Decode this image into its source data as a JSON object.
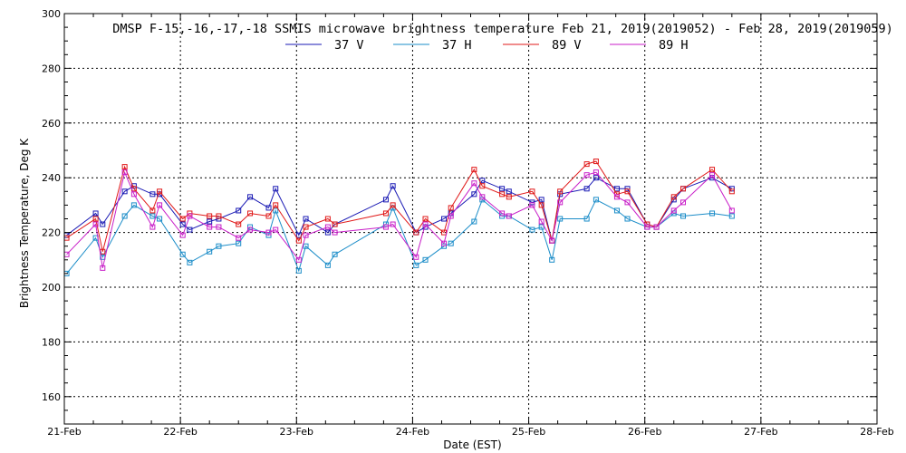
{
  "chart_data": {
    "type": "line",
    "title": "DMSP F-15,-16,-17,-18 SSMIS microwave brightness temperature Feb 21, 2019(2019052) - Feb 28, 2019(2019059)",
    "xlabel": "Date (EST)",
    "ylabel": "Brightness Temperature, Deg K",
    "xlim": [
      0,
      7
    ],
    "ylim": [
      150,
      300
    ],
    "x_ticks": [
      0,
      1,
      2,
      3,
      4,
      5,
      6,
      7
    ],
    "x_tick_labels": [
      "21-Feb",
      "22-Feb",
      "23-Feb",
      "24-Feb",
      "25-Feb",
      "26-Feb",
      "27-Feb",
      "28-Feb"
    ],
    "y_ticks": [
      160,
      180,
      200,
      220,
      240,
      260,
      280,
      300
    ],
    "y_tick_labels": [
      "160",
      "180",
      "200",
      "220",
      "240",
      "260",
      "280",
      "300"
    ],
    "grid": true,
    "legend_position": "top-center",
    "series": [
      {
        "name": "37 V",
        "color": "#1a1ab4",
        "x": [
          0.02,
          0.27,
          0.33,
          0.52,
          0.6,
          0.76,
          0.82,
          1.02,
          1.08,
          1.25,
          1.33,
          1.5,
          1.6,
          1.76,
          1.82,
          2.02,
          2.08,
          2.27,
          2.33,
          2.77,
          2.83,
          3.03,
          3.11,
          3.27,
          3.33,
          3.53,
          3.6,
          3.77,
          3.83,
          4.03,
          4.11,
          4.2,
          4.27,
          4.5,
          4.58,
          4.76,
          4.85,
          5.02,
          5.1,
          5.25,
          5.33,
          5.58,
          5.75
        ],
        "y": [
          219,
          227,
          223,
          235,
          237,
          234,
          234,
          223,
          221,
          224,
          225,
          228,
          233,
          229,
          236,
          219,
          225,
          220,
          223,
          232,
          237,
          220,
          222,
          225,
          227,
          234,
          239,
          236,
          235,
          231,
          232,
          217,
          234,
          236,
          240,
          236,
          236,
          223,
          222,
          232,
          236,
          240,
          236
        ]
      },
      {
        "name": "37 H",
        "color": "#1a8cc8",
        "x": [
          0.02,
          0.27,
          0.33,
          0.52,
          0.6,
          0.76,
          0.82,
          1.02,
          1.08,
          1.25,
          1.33,
          1.5,
          1.6,
          1.76,
          1.82,
          2.02,
          2.08,
          2.27,
          2.33,
          2.77,
          2.83,
          3.03,
          3.11,
          3.27,
          3.33,
          3.53,
          3.6,
          3.77,
          3.83,
          4.03,
          4.11,
          4.2,
          4.27,
          4.5,
          4.58,
          4.76,
          4.85,
          5.02,
          5.1,
          5.25,
          5.33,
          5.58,
          5.75
        ],
        "y": [
          205,
          218,
          211,
          226,
          230,
          226,
          225,
          212,
          209,
          213,
          215,
          216,
          222,
          219,
          228,
          206,
          215,
          208,
          212,
          223,
          229,
          208,
          210,
          215,
          216,
          224,
          232,
          226,
          226,
          221,
          222,
          210,
          225,
          225,
          232,
          228,
          225,
          222,
          222,
          227,
          226,
          227,
          226
        ]
      },
      {
        "name": "89 V",
        "color": "#e01818",
        "x": [
          0.02,
          0.27,
          0.33,
          0.52,
          0.6,
          0.76,
          0.82,
          1.02,
          1.08,
          1.25,
          1.33,
          1.5,
          1.6,
          1.76,
          1.82,
          2.02,
          2.08,
          2.27,
          2.33,
          2.77,
          2.83,
          3.03,
          3.11,
          3.27,
          3.33,
          3.53,
          3.6,
          3.77,
          3.83,
          4.03,
          4.11,
          4.2,
          4.27,
          4.5,
          4.58,
          4.76,
          4.85,
          5.02,
          5.1,
          5.25,
          5.33,
          5.58,
          5.75
        ],
        "y": [
          218,
          225,
          213,
          244,
          236,
          228,
          235,
          225,
          227,
          226,
          226,
          223,
          227,
          226,
          230,
          217,
          222,
          225,
          223,
          227,
          230,
          220,
          225,
          220,
          229,
          243,
          237,
          234,
          233,
          235,
          230,
          217,
          235,
          245,
          246,
          234,
          235,
          223,
          222,
          233,
          236,
          243,
          235
        ]
      },
      {
        "name": "89 H",
        "color": "#c81ec8",
        "x": [
          0.02,
          0.27,
          0.33,
          0.52,
          0.6,
          0.76,
          0.82,
          1.02,
          1.08,
          1.25,
          1.33,
          1.5,
          1.6,
          1.76,
          1.82,
          2.02,
          2.08,
          2.27,
          2.33,
          2.77,
          2.83,
          3.03,
          3.11,
          3.27,
          3.33,
          3.53,
          3.6,
          3.77,
          3.83,
          4.03,
          4.11,
          4.2,
          4.27,
          4.5,
          4.58,
          4.76,
          4.85,
          5.02,
          5.1,
          5.25,
          5.33,
          5.58,
          5.75
        ],
        "y": [
          212,
          223,
          207,
          242,
          234,
          222,
          230,
          219,
          226,
          222,
          222,
          218,
          221,
          220,
          221,
          210,
          219,
          222,
          220,
          222,
          223,
          211,
          223,
          216,
          226,
          238,
          233,
          227,
          226,
          230,
          224,
          217,
          231,
          241,
          242,
          233,
          231,
          222,
          222,
          228,
          231,
          241,
          228
        ]
      }
    ]
  }
}
